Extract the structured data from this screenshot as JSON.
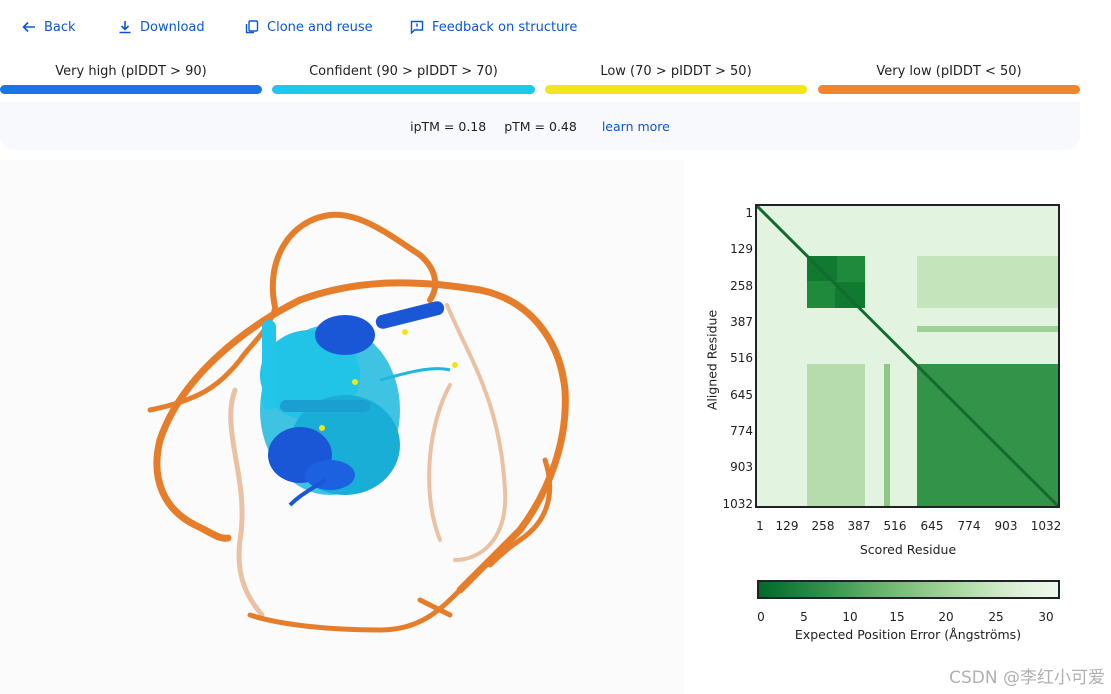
{
  "toolbar": {
    "back": "Back",
    "download": "Download",
    "clone": "Clone and reuse",
    "feedback": "Feedback on structure"
  },
  "legend": [
    {
      "label": "Very high (pIDDT > 90)",
      "color": "#1a73e8"
    },
    {
      "label": "Confident (90 > pIDDT > 70)",
      "color": "#1cc8ee"
    },
    {
      "label": "Low (70 > pIDDT > 50)",
      "color": "#f2e51c"
    },
    {
      "label": "Very low (pIDDT < 50)",
      "color": "#f0852c"
    }
  ],
  "metrics": {
    "iptm": "ipTM = 0.18",
    "ptm": "pTM = 0.48",
    "learn_more": "learn more"
  },
  "pae": {
    "y_label": "Aligned Residue",
    "x_label": "Scored Residue",
    "ticks": [
      "1",
      "129",
      "258",
      "387",
      "516",
      "645",
      "774",
      "903",
      "1032"
    ],
    "colorbar_ticks": [
      "0",
      "5",
      "10",
      "15",
      "20",
      "25",
      "30"
    ],
    "colorbar_label": "Expected Position Error (Ångströms)"
  },
  "watermark": "CSDN @李红小可爱"
}
